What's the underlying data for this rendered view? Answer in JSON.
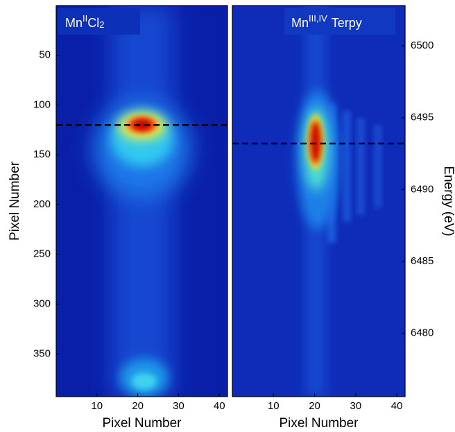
{
  "chart_data": [
    {
      "type": "heatmap",
      "label": {
        "base": "Mn",
        "sup": "II",
        "rest": "Cl",
        "sub": "2"
      },
      "xlabel": "Pixel Number",
      "ylabel": "Pixel Number",
      "xlim": [
        0,
        42
      ],
      "xticks": [
        10,
        20,
        30,
        40
      ],
      "ylim": [
        393,
        0
      ],
      "yticks": [
        50,
        100,
        150,
        200,
        250,
        300,
        350
      ],
      "hline": 120,
      "hline_color": "#000000"
    },
    {
      "type": "heatmap",
      "label": {
        "base": "Mn",
        "sup": "III,IV",
        "rest": "Terpy"
      },
      "xlabel": "Pixel Number",
      "y2label": "Energy (eV)",
      "xlim": [
        0,
        42
      ],
      "xticks": [
        10,
        20,
        30,
        40
      ],
      "y2lim": [
        6475.6,
        6502.8
      ],
      "y2ticks": [
        6480,
        6485,
        6490,
        6495,
        6500
      ],
      "hline": 6493.2,
      "hline_color": "#000000"
    }
  ]
}
